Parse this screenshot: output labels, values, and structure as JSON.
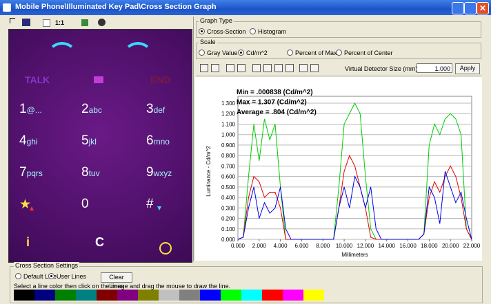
{
  "window": {
    "title": "Mobile Phone\\Illuminated Key Pad\\Cross Section Graph"
  },
  "toolbar": {
    "zoom": "1:1"
  },
  "keypad": {
    "talk": "TALK",
    "end": "END",
    "keys": [
      {
        "digit": "1",
        "letters": "@..."
      },
      {
        "digit": "2",
        "letters": "abc"
      },
      {
        "digit": "3",
        "letters": "def"
      },
      {
        "digit": "4",
        "letters": "ghi"
      },
      {
        "digit": "5",
        "letters": "jkl"
      },
      {
        "digit": "6",
        "letters": "mno"
      },
      {
        "digit": "7",
        "letters": "pqrs"
      },
      {
        "digit": "8",
        "letters": "tuv"
      },
      {
        "digit": "9",
        "letters": "wxyz"
      },
      {
        "digit": "★",
        "letters": ""
      },
      {
        "digit": "0",
        "letters": ""
      },
      {
        "digit": "#",
        "letters": ""
      }
    ],
    "bottom": [
      "i",
      "C"
    ]
  },
  "graph_type": {
    "label": "Graph Type",
    "options": [
      "Cross-Section",
      "Histogram"
    ],
    "selected": 0
  },
  "scale": {
    "label": "Scale",
    "options": [
      "Gray Value",
      "Cd/m^2",
      "Percent of Max",
      "Percent of Center"
    ],
    "selected": 1
  },
  "detector": {
    "label": "Virtual Detector Size (mm)",
    "value": "1.000",
    "button": "Apply"
  },
  "chart_data": {
    "type": "line",
    "annotations": [
      "Min = .000838 (Cd/m^2)",
      "Max = 1.307 (Cd/m^2)",
      "Average = .804 (Cd/m^2)"
    ],
    "xlabel": "Millimeters",
    "ylabel": "Luminance - Cd/m^2",
    "x": [
      0,
      0.5,
      1,
      1.5,
      2,
      2.5,
      3,
      3.5,
      4,
      4.5,
      5,
      5.5,
      6,
      6.5,
      7,
      7.5,
      8,
      8.5,
      9,
      9.5,
      10,
      10.5,
      11,
      11.5,
      12,
      12.5,
      13,
      13.5,
      14,
      14.5,
      15,
      15.5,
      16,
      16.5,
      17,
      17.5,
      18,
      18.5,
      19,
      19.5,
      20,
      20.5,
      21,
      21.5,
      22
    ],
    "series": [
      {
        "name": "Green line",
        "color": "#00cc00",
        "values": [
          0,
          0.02,
          0.6,
          1.1,
          0.75,
          1.15,
          0.95,
          1.1,
          0.5,
          0,
          0,
          0,
          0,
          0,
          0,
          0,
          0,
          0,
          0,
          0.5,
          1.1,
          1.2,
          1.3,
          1.2,
          0.6,
          0.1,
          0,
          0,
          0,
          0,
          0,
          0,
          0,
          0,
          0,
          0.05,
          0.9,
          1.1,
          1.0,
          1.15,
          1.2,
          1.15,
          1.0,
          0.1,
          0
        ]
      },
      {
        "name": "Red line",
        "color": "#e00000",
        "values": [
          0,
          0.02,
          0.4,
          0.6,
          0.55,
          0.4,
          0.45,
          0.45,
          0.3,
          0,
          0,
          0,
          0,
          0,
          0,
          0,
          0,
          0,
          0,
          0.3,
          0.65,
          0.8,
          0.7,
          0.5,
          0.3,
          0.02,
          0,
          0,
          0,
          0,
          0,
          0,
          0,
          0,
          0,
          0.05,
          0.4,
          0.55,
          0.45,
          0.6,
          0.7,
          0.6,
          0.4,
          0.1,
          0
        ]
      },
      {
        "name": "Blue line",
        "color": "#0000e0",
        "values": [
          0,
          0.02,
          0.3,
          0.5,
          0.2,
          0.35,
          0.25,
          0.3,
          0.5,
          0.1,
          0,
          0,
          0,
          0,
          0,
          0,
          0,
          0,
          0,
          0.3,
          0.5,
          0.3,
          0.6,
          0.5,
          0.3,
          0.5,
          0.1,
          0,
          0,
          0,
          0,
          0,
          0,
          0,
          0,
          0.05,
          0.5,
          0.4,
          0.15,
          0.65,
          0.5,
          0.35,
          0.45,
          0.2,
          0
        ]
      }
    ],
    "xlim": [
      0,
      22
    ],
    "ylim": [
      0,
      1.3
    ],
    "xticks": [
      {
        "value": 0,
        "label": "0.000"
      },
      {
        "value": 2,
        "label": "2.000"
      },
      {
        "value": 4,
        "label": "4.000"
      },
      {
        "value": 6,
        "label": "6.000"
      },
      {
        "value": 8,
        "label": "8.000"
      },
      {
        "value": 10,
        "label": "10.000"
      },
      {
        "value": 12,
        "label": "12.000"
      },
      {
        "value": 14,
        "label": "14.000"
      },
      {
        "value": 16,
        "label": "16.000"
      },
      {
        "value": 18,
        "label": "18.000"
      },
      {
        "value": 20,
        "label": "20.000"
      },
      {
        "value": 22,
        "label": "22.000"
      }
    ],
    "yticks": [
      {
        "value": 0,
        "label": "0.000"
      },
      {
        "value": 0.1,
        "label": "0.100"
      },
      {
        "value": 0.2,
        "label": "0.200"
      },
      {
        "value": 0.3,
        "label": "0.300"
      },
      {
        "value": 0.4,
        "label": "0.400"
      },
      {
        "value": 0.5,
        "label": "0.500"
      },
      {
        "value": 0.6,
        "label": "0.600"
      },
      {
        "value": 0.7,
        "label": "0.700"
      },
      {
        "value": 0.8,
        "label": "0.800"
      },
      {
        "value": 0.9,
        "label": "0.900"
      },
      {
        "value": 1.0,
        "label": "1.000"
      },
      {
        "value": 1.1,
        "label": "1.100"
      },
      {
        "value": 1.2,
        "label": "1.200"
      },
      {
        "value": 1.3,
        "label": "1.300"
      }
    ],
    "grid": true
  },
  "cross_section_settings": {
    "label": "Cross Section Settings",
    "options": [
      "Default Line",
      "User Lines"
    ],
    "selected": 1,
    "button": "Clear Lines",
    "instruction": "Select a line color then click on the image and drag the mouse to draw the line.",
    "palette": [
      "#000000",
      "#000080",
      "#008000",
      "#008080",
      "#800000",
      "#800080",
      "#808000",
      "#c0c0c0",
      "#808080",
      "#0000ff",
      "#00ff00",
      "#00ffff",
      "#ff0000",
      "#ff00ff",
      "#ffff00"
    ]
  }
}
